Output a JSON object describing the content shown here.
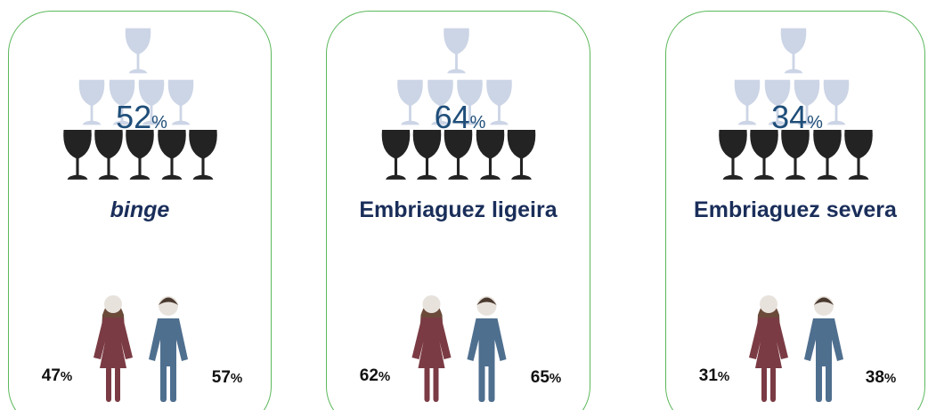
{
  "cards": [
    {
      "total": "52",
      "total_unit": "%",
      "label": "binge",
      "female": "47",
      "female_unit": "%",
      "male": "57",
      "male_unit": "%"
    },
    {
      "total": "64",
      "total_unit": "%",
      "label": "Embriaguez ligeira",
      "female": "62",
      "female_unit": "%",
      "male": "65",
      "male_unit": "%"
    },
    {
      "total": "34",
      "total_unit": "%",
      "label": "Embriaguez severa",
      "female": "31",
      "female_unit": "%",
      "male": "38",
      "male_unit": "%"
    }
  ]
}
